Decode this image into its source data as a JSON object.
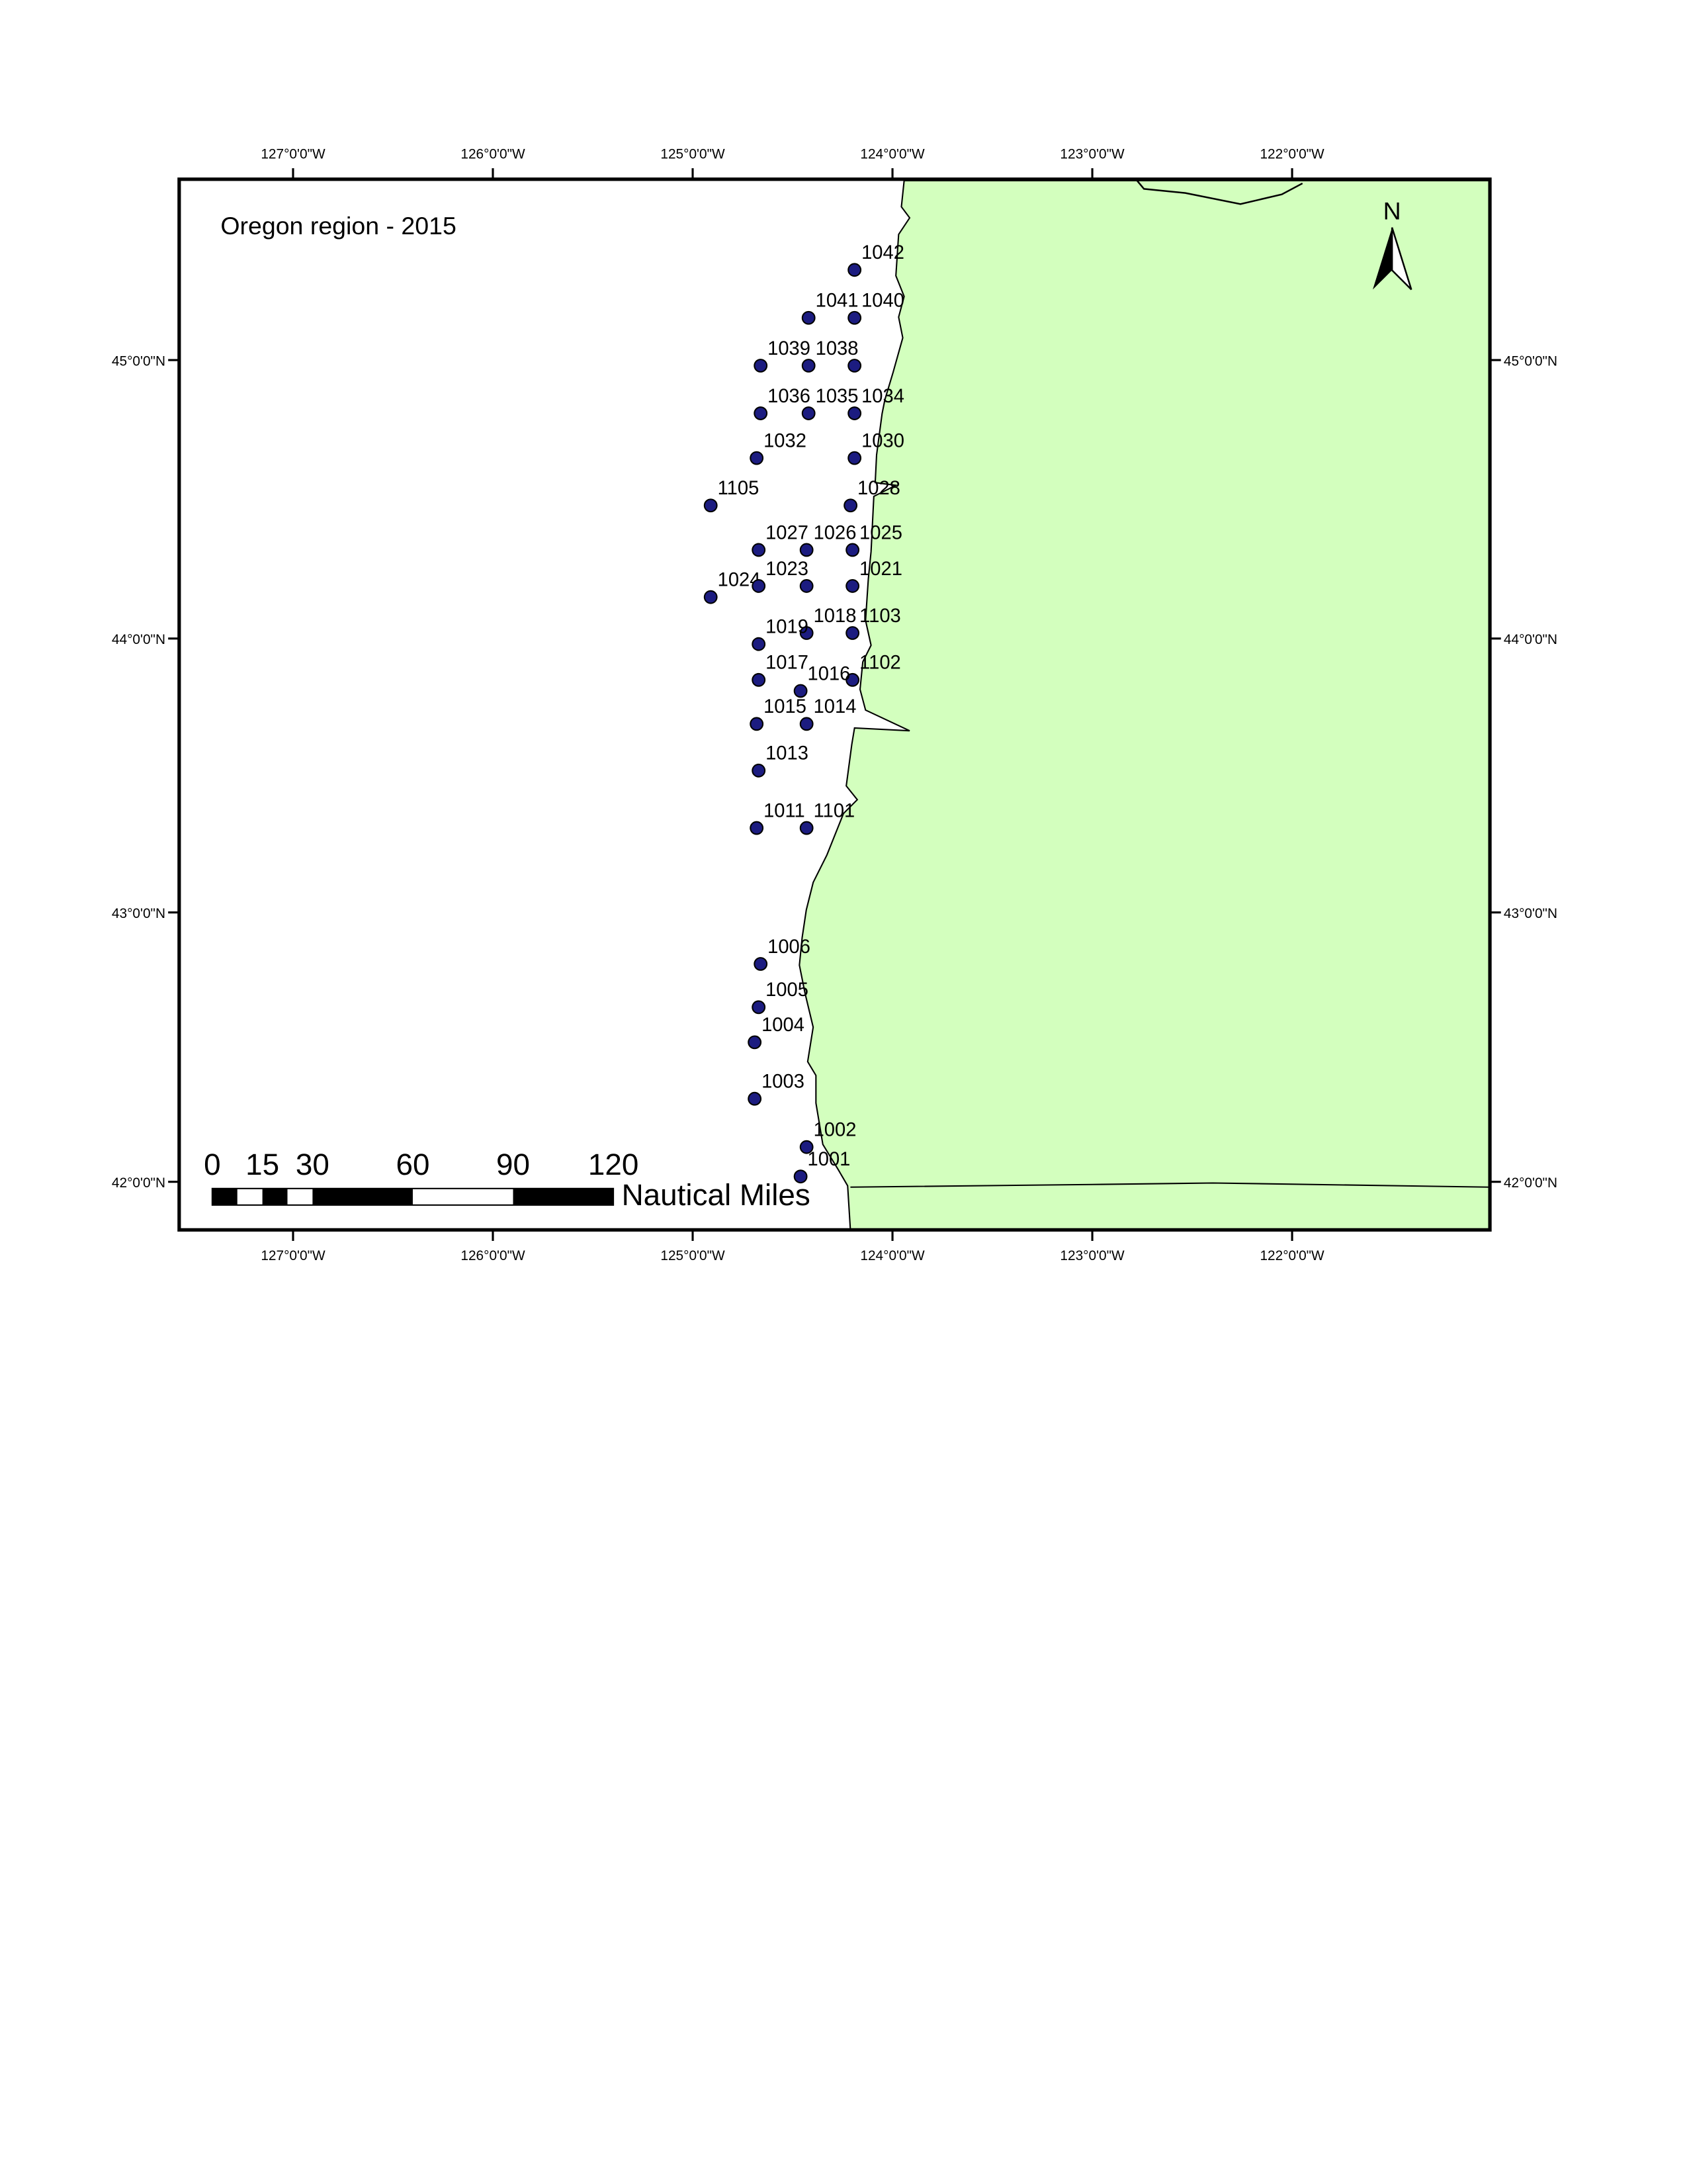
{
  "map": {
    "title": "Oregon region - 2015",
    "projection": "mercator",
    "xlim": [
      -127.57,
      -121.01
    ],
    "ylim": [
      41.82,
      45.64
    ],
    "xticks": [
      {
        "value": -127,
        "label": "127°0'0\"W"
      },
      {
        "value": -126,
        "label": "126°0'0\"W"
      },
      {
        "value": -125,
        "label": "125°0'0\"W"
      },
      {
        "value": -124,
        "label": "124°0'0\"W"
      },
      {
        "value": -123,
        "label": "123°0'0\"W"
      },
      {
        "value": -122,
        "label": "122°0'0\"W"
      }
    ],
    "yticks": [
      {
        "value": 45,
        "label": "45°0'0\"N"
      },
      {
        "value": 44,
        "label": "44°0'0\"N"
      },
      {
        "value": 43,
        "label": "43°0'0\"N"
      },
      {
        "value": 42,
        "label": "42°0'0\"N"
      }
    ],
    "land_color": "#d3ffbe",
    "station_color": "#1c1c80",
    "stations": {
      "labels": [
        "1042",
        "1041",
        "1040",
        "1039",
        "1038",
        null,
        "1036",
        "1035",
        "1034",
        "1032",
        "1030",
        "1105",
        "1028",
        "1027",
        "1026",
        "1025",
        "1024",
        "1023",
        null,
        "1021",
        "1018",
        "1103",
        "1019",
        "1017",
        "1102",
        "1016",
        "1015",
        "1014",
        "1013",
        "1011",
        "1101",
        "1006",
        "1005",
        "1004",
        "1003",
        "1002",
        "1001"
      ],
      "lon": [
        -124.19,
        -124.42,
        -124.19,
        -124.66,
        -124.42,
        -124.19,
        -124.66,
        -124.42,
        -124.19,
        -124.68,
        -124.19,
        -124.91,
        -124.21,
        -124.67,
        -124.43,
        -124.2,
        -124.91,
        -124.67,
        -124.43,
        -124.2,
        -124.43,
        -124.2,
        -124.67,
        -124.67,
        -124.2,
        -124.46,
        -124.68,
        -124.43,
        -124.67,
        -124.68,
        -124.43,
        -124.66,
        -124.67,
        -124.69,
        -124.69,
        -124.43,
        -124.46
      ],
      "lat": [
        45.32,
        45.15,
        45.15,
        44.98,
        44.98,
        44.98,
        44.81,
        44.81,
        44.81,
        44.65,
        44.65,
        44.48,
        44.48,
        44.32,
        44.32,
        44.32,
        44.15,
        44.19,
        44.19,
        44.19,
        44.02,
        44.02,
        43.98,
        43.85,
        43.85,
        43.81,
        43.69,
        43.69,
        43.52,
        43.31,
        43.31,
        42.81,
        42.65,
        42.52,
        42.31,
        42.13,
        42.02
      ]
    },
    "scale_bar": {
      "ticks": [
        0,
        15,
        30,
        60,
        90,
        120
      ],
      "unit": "Nautical Miles"
    },
    "north_label": "N"
  }
}
